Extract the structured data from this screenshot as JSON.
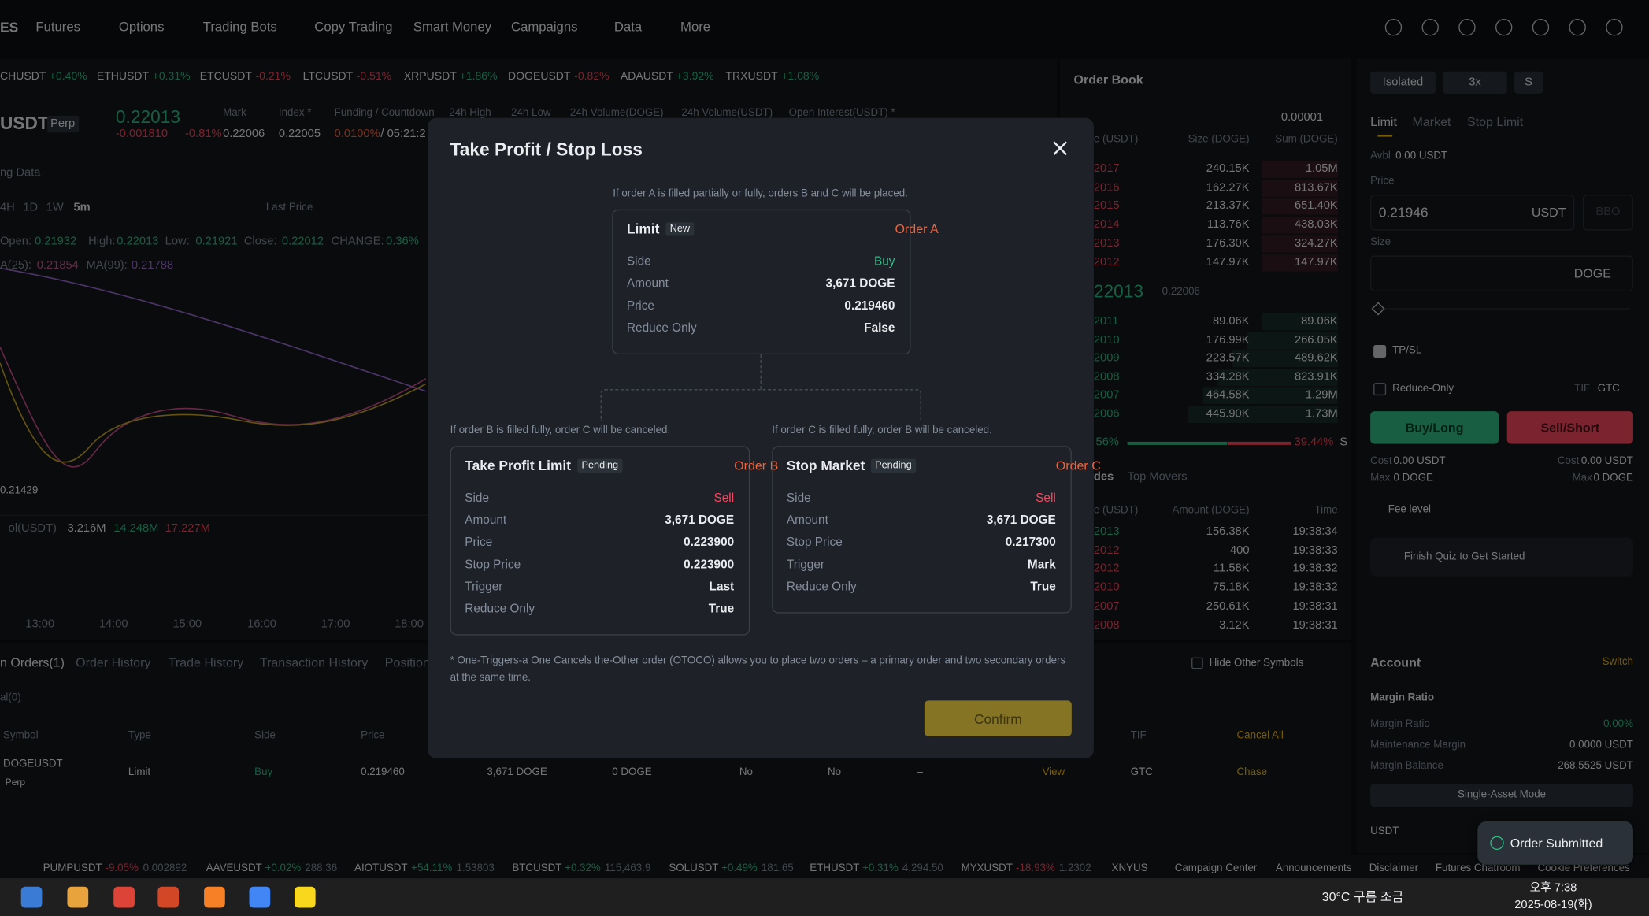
{
  "nav": {
    "logo": "ES",
    "items": [
      "Futures",
      "Options",
      "Trading Bots",
      "Copy Trading",
      "Smart Money",
      "Campaigns",
      "Data",
      "More"
    ]
  },
  "ticker": [
    {
      "symbol": "CHUSDT",
      "change": "+0.40%"
    },
    {
      "symbol": "ETHUSDT",
      "change": "+0.31%"
    },
    {
      "symbol": "ETCUSDT",
      "change": "-0.21%"
    },
    {
      "symbol": "LTCUSDT",
      "change": "-0.51%"
    },
    {
      "symbol": "XRPUSDT",
      "change": "+1.86%"
    },
    {
      "symbol": "DOGEUSDT",
      "change": "-0.82%"
    },
    {
      "symbol": "ADAUSDT",
      "change": "+3.92%"
    },
    {
      "symbol": "TRXUSDT",
      "change": "+1.08%"
    }
  ],
  "symbol": {
    "name": "USDT",
    "tag": "Perp",
    "price": "0.22013",
    "change": "-0.001810",
    "pct": "-0.81%",
    "stats": [
      {
        "label": "Mark",
        "value": "0.22006"
      },
      {
        "label": "Index *",
        "value": "0.22005"
      },
      {
        "label": "Funding / Countdown",
        "value": "0.0100%",
        "extra": "/ 05:21:2"
      },
      {
        "label": "24h High"
      },
      {
        "label": "24h Low"
      },
      {
        "label": "24h Volume(DOGE)"
      },
      {
        "label": "24h Volume(USDT)"
      },
      {
        "label": "Open Interest(USDT) *"
      }
    ]
  },
  "chart": {
    "tab": "ng Data",
    "intervals": [
      "4H",
      "1D",
      "1W",
      "5m"
    ],
    "price_type": "Last Price",
    "ohlc": [
      {
        "label": "Open:",
        "value": "0.21932"
      },
      {
        "label": "High:",
        "value": "0.22013"
      },
      {
        "label": "Low:",
        "value": "0.21921"
      },
      {
        "label": "Close:",
        "value": "0.22012"
      },
      {
        "label": "CHANGE:",
        "value": "0.36%"
      }
    ],
    "ma": [
      {
        "label": "A(25):",
        "value": "0.21854"
      },
      {
        "label": "MA(99):",
        "value": "0.21788"
      }
    ],
    "price_label": "0.21429",
    "vol_label": "ol(USDT)",
    "vol_values": [
      "3.216M",
      "14.248M",
      "17.227M"
    ],
    "times": [
      "13:00",
      "14:00",
      "15:00",
      "16:00",
      "17:00",
      "18:00"
    ]
  },
  "order_book": {
    "title": "Order Book",
    "step": "0.00001",
    "headers": [
      "e (USDT)",
      "Size (DOGE)",
      "Sum (DOGE)"
    ],
    "asks": [
      [
        "2017",
        "240.15K",
        "1.05M"
      ],
      [
        "2016",
        "162.27K",
        "813.67K"
      ],
      [
        "2015",
        "213.37K",
        "651.40K"
      ],
      [
        "2014",
        "113.76K",
        "438.03K"
      ],
      [
        "2013",
        "176.30K",
        "324.27K"
      ],
      [
        "2012",
        "147.97K",
        "147.97K"
      ]
    ],
    "mid": "22013",
    "mark": "0.22006",
    "bids": [
      [
        "2011",
        "89.06K",
        "89.06K"
      ],
      [
        "2010",
        "176.99K",
        "266.05K"
      ],
      [
        "2009",
        "223.57K",
        "489.62K"
      ],
      [
        "2008",
        "334.28K",
        "823.91K"
      ],
      [
        "2007",
        "464.58K",
        "1.29M"
      ],
      [
        "2006",
        "445.90K",
        "1.73M"
      ]
    ],
    "buy_ratio": "56%",
    "sell_ratio": "39.44%",
    "sell_tag": "S"
  },
  "trades": {
    "tabs": [
      "des",
      "Top Movers"
    ],
    "headers": [
      "e (USDT)",
      "Amount (DOGE)",
      "Time"
    ],
    "rows": [
      [
        "2013",
        "156.38K",
        "19:38:34"
      ],
      [
        "2012",
        "400",
        "19:38:33"
      ],
      [
        "2012",
        "11.58K",
        "19:38:32"
      ],
      [
        "2010",
        "75.18K",
        "19:38:32"
      ],
      [
        "2007",
        "250.61K",
        "19:38:31"
      ],
      [
        "2008",
        "3.12K",
        "19:38:31"
      ]
    ]
  },
  "order_form": {
    "margin": [
      "Isolated",
      "3x",
      "S"
    ],
    "tabs": [
      "Limit",
      "Market",
      "Stop Limit"
    ],
    "avbl_label": "Avbl",
    "avbl": "0.00 USDT",
    "price_label": "Price",
    "price": "0.21946",
    "price_unit": "USDT",
    "bbo": "BBO",
    "size_label": "Size",
    "size_unit": "DOGE",
    "tpsl": "TP/SL",
    "reduce_only": "Reduce-Only",
    "tif_label": "TIF",
    "tif": "GTC",
    "buy": "Buy/Long",
    "sell": "Sell/Short",
    "cost_label": "Cost",
    "cost_buy": "0.00 USDT",
    "cost_sell": "0.00 USDT",
    "max_label": "Max",
    "max_buy": "0 DOGE",
    "max_sell": "0 DOGE",
    "fee": "Fee level",
    "quiz": "Finish Quiz to Get Started"
  },
  "account": {
    "title": "Account",
    "switch": "Switch",
    "section": "Margin Ratio",
    "rows": [
      {
        "label": "Margin Ratio",
        "value": "0.00%"
      },
      {
        "label": "Maintenance Margin",
        "value": "0.0000 USDT"
      },
      {
        "label": "Margin Balance",
        "value": "268.5525 USDT"
      }
    ],
    "mode": "Single-Asset Mode",
    "asset": "USDT"
  },
  "toast": "Order Submitted",
  "orders": {
    "tabs": [
      "n Orders(1)",
      "Order History",
      "Trade History",
      "Transaction History",
      "Position"
    ],
    "sub": "al(0)",
    "hide": "Hide Other Symbols",
    "headers": [
      "Symbol",
      "Type",
      "Side",
      "Price",
      "TIF",
      "Cancel All"
    ],
    "row": {
      "symbol": "DOGEUSDT",
      "tag": "Perp",
      "type": "Limit",
      "side": "Buy",
      "price": "0.219460",
      "amount": "3,671 DOGE",
      "filled": "0 DOGE",
      "c1": "No",
      "c2": "No",
      "c3": "–",
      "view": "View",
      "tif": "GTC",
      "chase": "Chase"
    }
  },
  "bottom_ticker": [
    {
      "symbol": "PUMPUSDT",
      "change": "-9.05%",
      "price": "0.002892"
    },
    {
      "symbol": "AAVEUSDT",
      "change": "+0.02%",
      "price": "288.36"
    },
    {
      "symbol": "AIOTUSDT",
      "change": "+54.11%",
      "price": "1.53803"
    },
    {
      "symbol": "BTCUSDT",
      "change": "+0.32%",
      "price": "115,463.9"
    },
    {
      "symbol": "SOLUSDT",
      "change": "+0.49%",
      "price": "181.65"
    },
    {
      "symbol": "ETHUSDT",
      "change": "+0.31%",
      "price": "4,294.50"
    },
    {
      "symbol": "MYXUSDT",
      "change": "-18.93%",
      "price": "1.2302"
    },
    {
      "symbol": "XNYUS"
    }
  ],
  "footer_links": [
    "Campaign Center",
    "Announcements",
    "Disclaimer",
    "Futures Chatroom",
    "Cookie Preferences"
  ],
  "taskbar": {
    "weather": "30°C 구름 조금",
    "time": "오후 7:38",
    "date": "2025-08-19(화)"
  },
  "modal": {
    "title": "Take Profit / Stop Loss",
    "top_note": "If order A is filled partially or fully, orders B and C will be placed.",
    "note_b": "If order B is filled fully, order C will be canceled.",
    "note_c": "If order C is filled fully, order B will be canceled.",
    "orders": [
      {
        "type": "Limit",
        "status": "New",
        "label": "Order A",
        "fields": [
          {
            "label": "Side",
            "value": "Buy"
          },
          {
            "label": "Amount",
            "value": "3,671 DOGE"
          },
          {
            "label": "Price",
            "value": "0.219460"
          },
          {
            "label": "Reduce Only",
            "value": "False"
          }
        ]
      },
      {
        "type": "Take Profit Limit",
        "status": "Pending",
        "label": "Order B",
        "fields": [
          {
            "label": "Side",
            "value": "Sell"
          },
          {
            "label": "Amount",
            "value": "3,671 DOGE"
          },
          {
            "label": "Price",
            "value": "0.223900"
          },
          {
            "label": "Stop Price",
            "value": "0.223900"
          },
          {
            "label": "Trigger",
            "value": "Last"
          },
          {
            "label": "Reduce Only",
            "value": "True"
          }
        ]
      },
      {
        "type": "Stop Market",
        "status": "Pending",
        "label": "Order C",
        "fields": [
          {
            "label": "Side",
            "value": "Sell"
          },
          {
            "label": "Amount",
            "value": "3,671 DOGE"
          },
          {
            "label": "Stop Price",
            "value": "0.217300"
          },
          {
            "label": "Trigger",
            "value": "Mark"
          },
          {
            "label": "Reduce Only",
            "value": "True"
          }
        ]
      }
    ],
    "footnote": "* One-Triggers-a One Cancels the-Other order (OTOCO) allows you to place two orders – a primary order and two secondary orders at the same time.",
    "confirm": "Confirm"
  }
}
